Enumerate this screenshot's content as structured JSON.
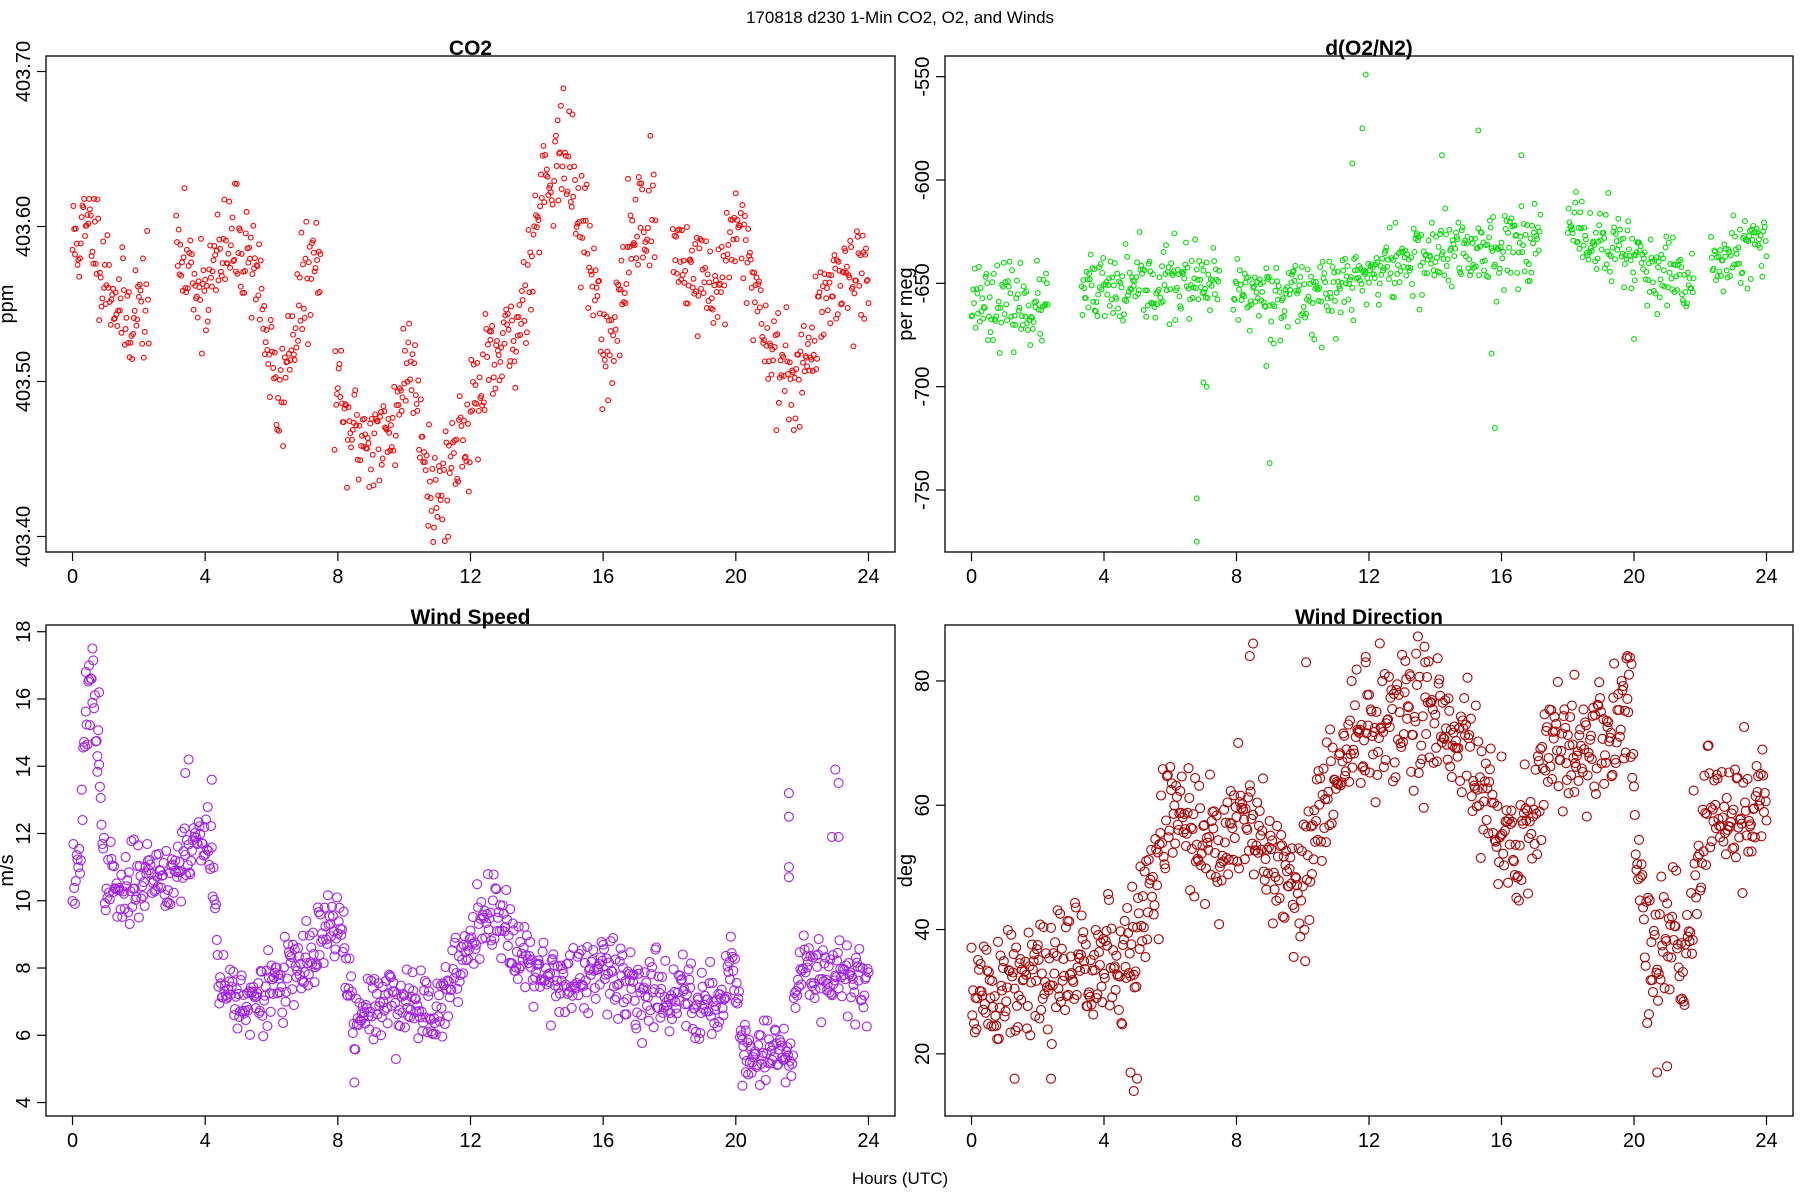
{
  "figure": {
    "title": "170818   d230   1-Min CO2, O2, and Winds",
    "xlabel": "Hours (UTC)"
  },
  "chart_data": [
    {
      "id": "co2",
      "type": "scatter",
      "title": "CO2",
      "xlabel": "Hours (UTC)",
      "ylabel": "ppm",
      "xlim": [
        -0.8,
        24.8
      ],
      "ylim": [
        403.39,
        403.71
      ],
      "xticks": [
        0,
        4,
        8,
        12,
        16,
        20,
        24
      ],
      "yticks": [
        403.4,
        403.5,
        403.6,
        403.7
      ],
      "ytick_labels": [
        "403.40",
        "403.50",
        "403.60",
        "403.70"
      ],
      "color": "#ff0000",
      "marker_radius": 2.4,
      "trend": [
        [
          0.1,
          403.59
        ],
        [
          0.6,
          403.6
        ],
        [
          1.0,
          403.57
        ],
        [
          1.6,
          403.54
        ],
        [
          2.1,
          403.55
        ],
        [
          3.2,
          403.58
        ],
        [
          4.0,
          403.56
        ],
        [
          4.8,
          403.59
        ],
        [
          5.5,
          403.58
        ],
        [
          6.2,
          403.48
        ],
        [
          6.6,
          403.53
        ],
        [
          7.3,
          403.58
        ],
        [
          8.2,
          403.47
        ],
        [
          9.5,
          403.46
        ],
        [
          10.2,
          403.52
        ],
        [
          10.9,
          403.42
        ],
        [
          11.6,
          403.46
        ],
        [
          12.4,
          403.5
        ],
        [
          13.4,
          403.53
        ],
        [
          14.2,
          403.63
        ],
        [
          14.8,
          403.65
        ],
        [
          15.6,
          403.58
        ],
        [
          16.2,
          403.51
        ],
        [
          16.9,
          403.6
        ],
        [
          17.3,
          403.61
        ],
        [
          18.3,
          403.58
        ],
        [
          19.4,
          403.56
        ],
        [
          20.2,
          403.6
        ],
        [
          20.9,
          403.53
        ],
        [
          21.5,
          403.5
        ],
        [
          22.3,
          403.52
        ],
        [
          22.9,
          403.57
        ],
        [
          23.8,
          403.57
        ]
      ],
      "gaps": [
        [
          2.3,
          3.1
        ],
        [
          7.5,
          7.9
        ],
        [
          17.6,
          18.1
        ]
      ],
      "noise": 0.018,
      "step_minutes": 1.5,
      "seed": 11
    },
    {
      "id": "o2n2",
      "type": "scatter",
      "title": "d(O2/N2)",
      "xlabel": "Hours (UTC)",
      "ylabel": "per meg",
      "xlim": [
        -0.8,
        24.8
      ],
      "ylim": [
        -780,
        -540
      ],
      "xticks": [
        0,
        4,
        8,
        12,
        16,
        20,
        24
      ],
      "yticks": [
        -750,
        -700,
        -650,
        -600,
        -550
      ],
      "ytick_labels": [
        "-750",
        "-700",
        "-650",
        "-600",
        "-550"
      ],
      "color": "#00dd00",
      "marker_radius": 2.4,
      "trend": [
        [
          0.1,
          -656
        ],
        [
          1.0,
          -660
        ],
        [
          2.2,
          -662
        ],
        [
          3.3,
          -655
        ],
        [
          4.5,
          -654
        ],
        [
          5.5,
          -652
        ],
        [
          6.3,
          -648
        ],
        [
          7.0,
          -652
        ],
        [
          8.0,
          -654
        ],
        [
          9.0,
          -655
        ],
        [
          10.0,
          -655
        ],
        [
          11.0,
          -654
        ],
        [
          12.0,
          -645
        ],
        [
          13.0,
          -640
        ],
        [
          14.0,
          -636
        ],
        [
          15.0,
          -635
        ],
        [
          16.0,
          -632
        ],
        [
          17.0,
          -628
        ],
        [
          18.0,
          -626
        ],
        [
          19.0,
          -630
        ],
        [
          20.0,
          -635
        ],
        [
          20.6,
          -647
        ],
        [
          21.5,
          -651
        ],
        [
          22.2,
          -640
        ],
        [
          23.0,
          -638
        ],
        [
          24.0,
          -630
        ]
      ],
      "gaps": [
        [
          2.3,
          3.3
        ],
        [
          7.5,
          7.9
        ],
        [
          17.2,
          18.0
        ],
        [
          21.8,
          22.3
        ]
      ],
      "noise": 9,
      "step_minutes": 1.5,
      "seed": 23,
      "outliers": [
        [
          6.8,
          -754
        ],
        [
          6.8,
          -775
        ],
        [
          7.0,
          -698
        ],
        [
          7.1,
          -700
        ],
        [
          9.0,
          -737
        ],
        [
          8.9,
          -690
        ],
        [
          11.5,
          -592
        ],
        [
          11.8,
          -575
        ],
        [
          11.9,
          -549
        ],
        [
          14.2,
          -588
        ],
        [
          15.3,
          -576
        ],
        [
          16.6,
          -588
        ],
        [
          15.8,
          -720
        ],
        [
          15.7,
          -684
        ],
        [
          20.0,
          -677
        ]
      ]
    },
    {
      "id": "wspd",
      "type": "scatter",
      "title": "Wind Speed",
      "xlabel": "Hours (UTC)",
      "ylabel": "m/s",
      "xlim": [
        -0.8,
        24.8
      ],
      "ylim": [
        3.6,
        18.2
      ],
      "xticks": [
        0,
        4,
        8,
        12,
        16,
        20,
        24
      ],
      "yticks": [
        4,
        6,
        8,
        10,
        12,
        14,
        16,
        18
      ],
      "ytick_labels": [
        "4",
        "6",
        "8",
        "10",
        "12",
        "14",
        "16",
        "18"
      ],
      "color": "#a020f0",
      "marker_radius": 4.5,
      "trend": [
        [
          0.0,
          10.6
        ],
        [
          0.2,
          11.0
        ],
        [
          0.4,
          15.0
        ],
        [
          0.6,
          16.5
        ],
        [
          0.8,
          14.5
        ],
        [
          0.9,
          11.0
        ],
        [
          1.5,
          10.0
        ],
        [
          2.0,
          10.8
        ],
        [
          3.0,
          10.8
        ],
        [
          3.5,
          11.5
        ],
        [
          4.2,
          12.0
        ],
        [
          4.4,
          7.5
        ],
        [
          5.0,
          7.2
        ],
        [
          5.5,
          6.8
        ],
        [
          6.0,
          7.5
        ],
        [
          7.0,
          8.0
        ],
        [
          7.8,
          9.3
        ],
        [
          8.2,
          8.8
        ],
        [
          8.5,
          6.0
        ],
        [
          9.0,
          7.0
        ],
        [
          10.0,
          7.0
        ],
        [
          11.0,
          6.8
        ],
        [
          11.5,
          7.5
        ],
        [
          12.0,
          9.0
        ],
        [
          12.5,
          9.8
        ],
        [
          13.0,
          9.5
        ],
        [
          13.5,
          8.5
        ],
        [
          14.0,
          8.0
        ],
        [
          15.0,
          7.6
        ],
        [
          16.0,
          7.8
        ],
        [
          17.0,
          7.4
        ],
        [
          18.0,
          7.3
        ],
        [
          19.0,
          7.0
        ],
        [
          19.5,
          6.8
        ],
        [
          19.9,
          8.5
        ],
        [
          20.2,
          5.8
        ],
        [
          20.8,
          5.4
        ],
        [
          21.3,
          5.6
        ],
        [
          21.6,
          5.2
        ],
        [
          21.9,
          8.2
        ],
        [
          22.5,
          8.0
        ],
        [
          23.0,
          8.0
        ],
        [
          23.6,
          7.5
        ],
        [
          24.0,
          7.6
        ]
      ],
      "gaps": [],
      "noise": 0.55,
      "step_minutes": 1.5,
      "seed": 37,
      "outliers": [
        [
          0.6,
          17.5
        ],
        [
          0.5,
          17.0
        ],
        [
          0.4,
          16.8
        ],
        [
          0.8,
          16.2
        ],
        [
          0.75,
          14.3
        ],
        [
          3.5,
          14.2
        ],
        [
          3.4,
          13.8
        ],
        [
          4.2,
          13.6
        ],
        [
          21.6,
          13.2
        ],
        [
          21.6,
          12.5
        ],
        [
          21.6,
          11.0
        ],
        [
          21.6,
          10.7
        ],
        [
          23.0,
          13.9
        ],
        [
          23.1,
          13.5
        ],
        [
          22.9,
          11.9
        ],
        [
          23.1,
          11.9
        ],
        [
          8.5,
          4.6
        ],
        [
          20.2,
          4.5
        ],
        [
          21.5,
          4.6
        ],
        [
          20.3,
          4.9
        ]
      ]
    },
    {
      "id": "wdir",
      "type": "scatter",
      "title": "Wind Direction",
      "xlabel": "Hours (UTC)",
      "ylabel": "deg",
      "xlim": [
        -0.8,
        24.8
      ],
      "ylim": [
        10,
        89
      ],
      "xticks": [
        0,
        4,
        8,
        12,
        16,
        20,
        24
      ],
      "yticks": [
        20,
        40,
        60,
        80
      ],
      "ytick_labels": [
        "20",
        "40",
        "60",
        "80"
      ],
      "color": "#aa0000",
      "marker_radius": 4.5,
      "trend": [
        [
          0.0,
          30
        ],
        [
          1.0,
          30
        ],
        [
          2.0,
          31
        ],
        [
          3.0,
          34
        ],
        [
          3.5,
          36
        ],
        [
          4.0,
          35
        ],
        [
          4.5,
          33
        ],
        [
          5.0,
          38
        ],
        [
          5.5,
          48
        ],
        [
          6.0,
          60
        ],
        [
          6.5,
          58
        ],
        [
          7.0,
          52
        ],
        [
          7.5,
          53
        ],
        [
          8.0,
          60
        ],
        [
          8.5,
          55
        ],
        [
          9.0,
          50
        ],
        [
          9.5,
          50
        ],
        [
          10.0,
          46
        ],
        [
          10.5,
          58
        ],
        [
          11.0,
          64
        ],
        [
          11.5,
          70
        ],
        [
          12.0,
          73
        ],
        [
          12.5,
          72
        ],
        [
          13.0,
          74
        ],
        [
          14.0,
          76
        ],
        [
          14.5,
          72
        ],
        [
          15.0,
          70
        ],
        [
          15.5,
          63
        ],
        [
          16.0,
          54
        ],
        [
          16.5,
          50
        ],
        [
          17.0,
          62
        ],
        [
          17.5,
          70
        ],
        [
          18.0,
          68
        ],
        [
          18.5,
          70
        ],
        [
          19.0,
          72
        ],
        [
          19.5,
          72
        ],
        [
          19.9,
          78
        ],
        [
          20.1,
          48
        ],
        [
          20.5,
          35
        ],
        [
          21.0,
          38
        ],
        [
          21.5,
          35
        ],
        [
          21.9,
          45
        ],
        [
          22.2,
          63
        ],
        [
          22.6,
          62
        ],
        [
          23.0,
          55
        ],
        [
          23.5,
          60
        ],
        [
          24.0,
          64
        ]
      ],
      "gaps": [],
      "noise": 5.2,
      "step_minutes": 1.5,
      "seed": 51,
      "outliers": [
        [
          4.8,
          17
        ],
        [
          4.9,
          14
        ],
        [
          5.0,
          16
        ],
        [
          2.4,
          16
        ],
        [
          1.3,
          16
        ],
        [
          8.5,
          86
        ],
        [
          8.4,
          84
        ],
        [
          10.1,
          83
        ],
        [
          11.9,
          83
        ],
        [
          13.7,
          83
        ],
        [
          18.2,
          81
        ],
        [
          19.8,
          84
        ],
        [
          20.7,
          17
        ],
        [
          21.0,
          18
        ]
      ]
    }
  ]
}
